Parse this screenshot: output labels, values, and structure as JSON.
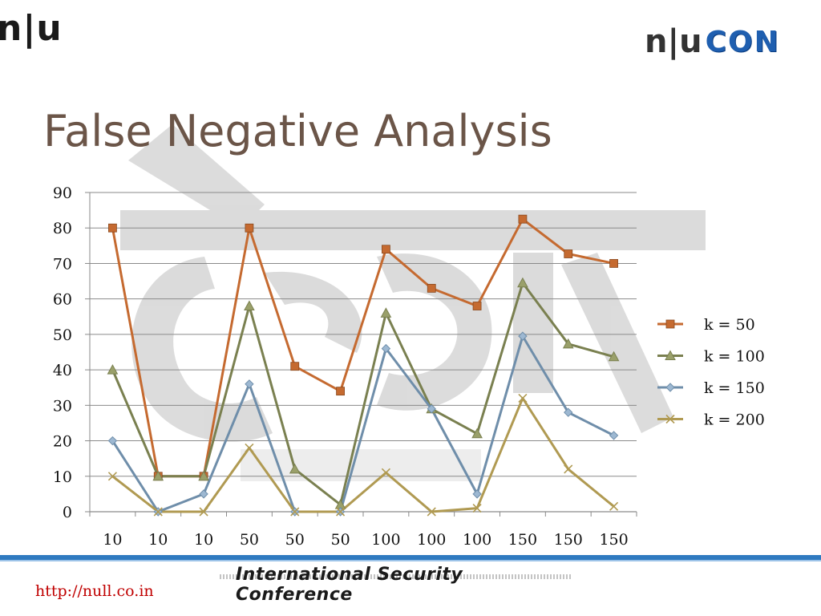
{
  "header": {
    "left_logo": "n|u",
    "right_logo_nu": "n|u",
    "right_logo_con": "CON"
  },
  "slide": {
    "title": "False Negative Analysis"
  },
  "footer": {
    "url": "http://null.co.in",
    "banner": "International Security Conference"
  },
  "chart_data": {
    "type": "line",
    "title": "",
    "xlabel": "",
    "ylabel": "",
    "ylim": [
      0,
      90
    ],
    "yticks": [
      "0",
      "10",
      "20",
      "30",
      "40",
      "50",
      "60",
      "70",
      "80",
      "90"
    ],
    "categories": [
      "10",
      "10",
      "10",
      "50",
      "50",
      "50",
      "100",
      "100",
      "100",
      "150",
      "150",
      "150"
    ],
    "grid": "horizontal",
    "legend": "right",
    "series": [
      {
        "name": "k = 50",
        "color": "#c56a30",
        "marker": "square",
        "values": [
          80,
          10,
          10,
          80,
          41,
          34,
          74,
          63,
          58,
          82.5,
          72.7,
          70
        ]
      },
      {
        "name": "k = 100",
        "color": "#7a8050",
        "marker": "triangle",
        "values": [
          40,
          10,
          10,
          58,
          12,
          2,
          56,
          29,
          22,
          64.5,
          47.3,
          43.7
        ]
      },
      {
        "name": "k = 150",
        "color": "#6f8eaa",
        "marker": "diamond",
        "values": [
          20,
          0,
          5,
          36,
          0,
          0,
          46,
          29,
          5,
          49.5,
          28,
          21.5
        ]
      },
      {
        "name": "k = 200",
        "color": "#b09a52",
        "marker": "x",
        "values": [
          10,
          0,
          0,
          18,
          0,
          0,
          11,
          0,
          1,
          32,
          12,
          1.5
        ]
      }
    ]
  }
}
